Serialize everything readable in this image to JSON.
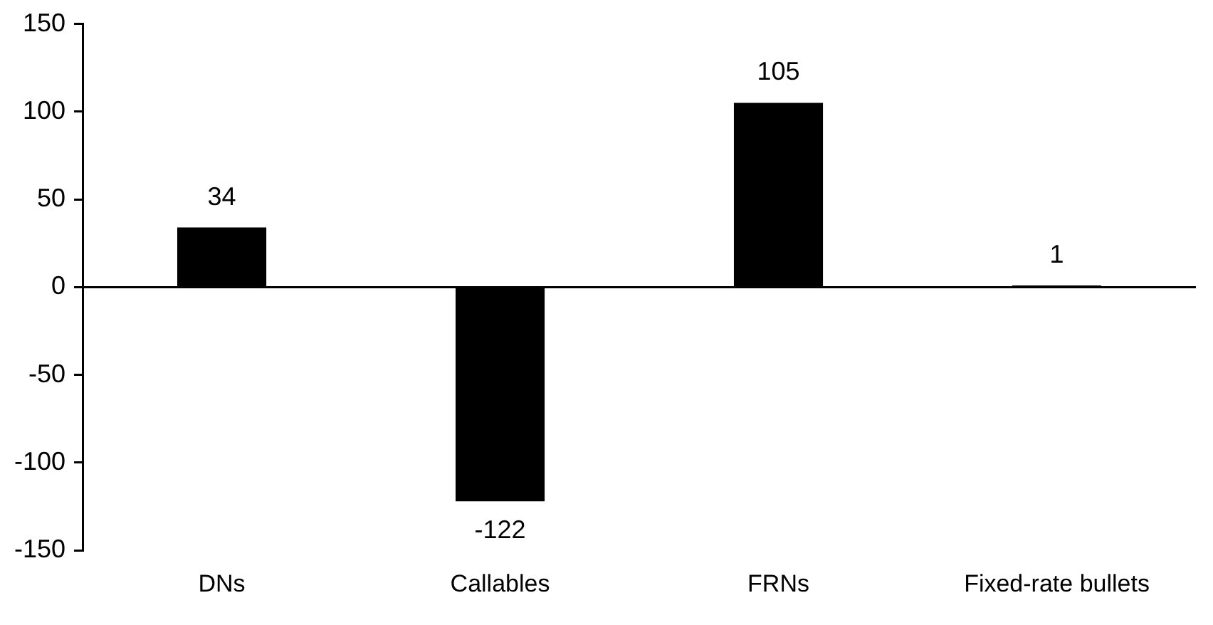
{
  "chart_data": {
    "type": "bar",
    "categories": [
      "DNs",
      "Callables",
      "FRNs",
      "Fixed-rate bullets"
    ],
    "values": [
      34,
      -122,
      105,
      1
    ],
    "color": "#000000",
    "ylim": [
      -150,
      150
    ],
    "yticks": [
      -150,
      -100,
      -50,
      0,
      50,
      100,
      150
    ],
    "grid": false,
    "ref_lines": [
      {
        "axis": "y",
        "value": 0,
        "color": "#000000"
      }
    ],
    "data_labels": true,
    "legend": false
  }
}
